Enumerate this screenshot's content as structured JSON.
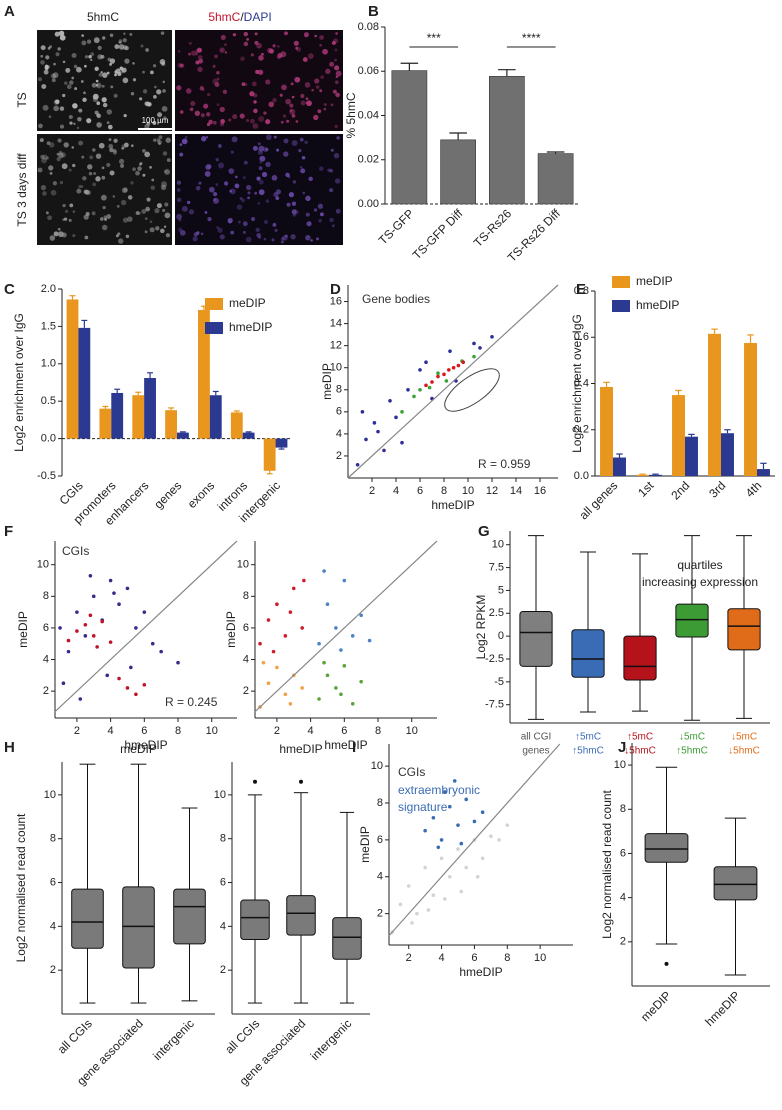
{
  "image_panel": {
    "panel": "A",
    "columns": [
      "5hmC",
      [
        "5hmC",
        "/",
        "DAPI"
      ]
    ],
    "rows": [
      "TS",
      "TS 3 days diff"
    ],
    "scale_bar": "100 µm"
  },
  "chart_data": [
    {
      "panel": "B",
      "type": "bar",
      "ylabel": "% 5hmC",
      "categories": [
        "TS-GFP",
        "TS-GFP Diff",
        "TS-Rs26",
        "TS-Rs26 Diff"
      ],
      "values": [
        0.0603,
        0.029,
        0.0577,
        0.0228
      ],
      "errors": [
        0.0033,
        0.0031,
        0.003,
        0.0007
      ],
      "color": "#707070",
      "ylim": [
        0,
        0.08
      ],
      "yticks": [
        {
          "value": 0,
          "label": "0.00"
        },
        {
          "value": 0.02,
          "label": "0.02"
        },
        {
          "value": 0.04,
          "label": "0.04"
        },
        {
          "value": 0.06,
          "label": "0.06"
        },
        {
          "value": 0.08,
          "label": "0.08"
        }
      ],
      "significance": [
        "***",
        "****"
      ],
      "zero_line": true
    },
    {
      "panel": "C",
      "type": "bar",
      "ylabel": "Log2 enrichment over IgG",
      "categories": [
        "CGIs",
        "promoters",
        "enhancers",
        "genes",
        "exons",
        "introns",
        "intergenic"
      ],
      "series": [
        {
          "name": "meDIP",
          "color": "#e8961e",
          "values": [
            1.86,
            0.4,
            0.58,
            0.38,
            1.72,
            0.35,
            -0.43
          ],
          "errors": [
            0.05,
            0.03,
            0.04,
            0.03,
            0.05,
            0.02,
            0.04
          ]
        },
        {
          "name": "hmeDIP",
          "color": "#2b3990",
          "values": [
            1.48,
            0.61,
            0.81,
            0.08,
            0.58,
            0.08,
            -0.12
          ],
          "errors": [
            0.1,
            0.05,
            0.07,
            0.01,
            0.05,
            0.01,
            0.02
          ]
        }
      ],
      "ylim": [
        -0.5,
        2
      ],
      "yticks": [
        -0.5,
        {
          "value": 0,
          "label": "0.0"
        },
        0.5,
        {
          "value": 1,
          "label": "1.0"
        },
        1.5,
        {
          "value": 2,
          "label": "2.0"
        }
      ],
      "legend": "upper right",
      "zero_line": true
    },
    {
      "panel": "D",
      "type": "scatter",
      "xlabel": "hmeDIP",
      "ylabel": "meDIP",
      "annotations": [
        "Gene bodies",
        "R = 0.959"
      ],
      "xlim": [
        0,
        17.5
      ],
      "ylim": [
        0,
        17.5
      ],
      "xticks": [
        2,
        4,
        6,
        8,
        10,
        12,
        14,
        16
      ],
      "yticks": [
        2,
        4,
        6,
        8,
        10,
        12,
        14,
        16
      ],
      "diagonal": true,
      "series": [
        {
          "color": "#2e2e9a",
          "x": [
            0.8,
            1.5,
            2.2,
            3,
            3.5,
            4,
            5,
            6,
            7,
            8.5,
            9,
            10.5,
            12,
            1.2,
            2.5,
            4.5,
            6.5,
            11
          ],
          "values": [
            1.2,
            3.5,
            5,
            2.5,
            7,
            5.5,
            8,
            9.8,
            7.2,
            11.5,
            8.8,
            12.2,
            12.8,
            6,
            4.2,
            3.2,
            10.5,
            11.8
          ]
        },
        {
          "color": "#3aa335",
          "x": [
            4.5,
            5.5,
            6,
            6.8,
            7.5,
            8.2,
            9.5,
            10.5
          ],
          "values": [
            6,
            7.4,
            8,
            8.2,
            9.5,
            8.8,
            10.6,
            11
          ]
        },
        {
          "color": "#d7191c",
          "x": [
            6.5,
            7,
            7.5,
            8,
            8.4,
            8.8,
            9.2,
            9.6
          ],
          "values": [
            8.4,
            8.7,
            9.2,
            9.4,
            9.8,
            10,
            10.2,
            10.5
          ]
        }
      ]
    },
    {
      "panel": "E",
      "type": "bar",
      "ylabel": "Log2 enrichment over IgG",
      "xlabel": [
        "quartiles",
        "increasing expression"
      ],
      "categories": [
        "all genes",
        "1st",
        "2nd",
        "3rd",
        "4th"
      ],
      "series": [
        {
          "name": "meDIP",
          "color": "#e8961e",
          "values": [
            0.385,
            0.005,
            0.35,
            0.615,
            0.575
          ],
          "errors": [
            0.02,
            0.003,
            0.02,
            0.02,
            0.035
          ]
        },
        {
          "name": "hmeDIP",
          "color": "#2b3990",
          "values": [
            0.08,
            0.005,
            0.17,
            0.185,
            0.03
          ],
          "errors": [
            0.015,
            0.003,
            0.01,
            0.015,
            0.025
          ]
        }
      ],
      "ylim": [
        0,
        0.8
      ],
      "yticks": [
        {
          "value": 0,
          "label": "0.0"
        },
        0.2,
        0.4,
        0.6,
        0.8
      ],
      "legend": "upper left"
    },
    {
      "panel": "F",
      "type": "scatter",
      "xlabel": "hmeDIP",
      "ylabel": "meDIP",
      "annotations": [
        "CGIs",
        "R = 0.245"
      ],
      "xlim": [
        0.7,
        11.5
      ],
      "ylim": [
        0.3,
        11.5
      ],
      "xticks": [
        2,
        4,
        6,
        8,
        10
      ],
      "yticks": [
        2,
        4,
        6,
        8,
        10
      ],
      "diagonal": true,
      "series": [
        {
          "color": "#3b2a8c",
          "x": [
            1,
            1.5,
            2,
            2.5,
            3,
            3.5,
            4,
            4.5,
            5,
            5.5,
            6,
            6.5,
            7,
            1.2,
            2.2,
            3.8,
            5.2,
            8,
            4.2,
            2.8
          ],
          "values": [
            6,
            4.5,
            7,
            5.5,
            8,
            6.5,
            9,
            7.5,
            8.5,
            6,
            7,
            5,
            4.5,
            2.5,
            1.5,
            3,
            3.5,
            3.8,
            8.2,
            9.3
          ]
        },
        {
          "color": "#c0142b",
          "x": [
            1.5,
            2,
            2.5,
            3,
            3.5,
            4,
            4.5,
            5,
            5.5,
            6,
            2.8,
            3.2
          ],
          "values": [
            5.2,
            5.8,
            6.2,
            5.5,
            6.4,
            5.1,
            2.8,
            2.2,
            1.8,
            2.4,
            6.8,
            4.8
          ]
        }
      ]
    },
    {
      "type": "scatter",
      "xlabel": "hmeDIP",
      "ylabel": "meDIP",
      "xlim": [
        0.7,
        11.5
      ],
      "ylim": [
        0.3,
        11.5
      ],
      "xticks": [
        2,
        4,
        6,
        8,
        10
      ],
      "yticks": [
        2,
        4,
        6,
        8,
        10
      ],
      "diagonal": true,
      "series": [
        {
          "color": "#d01c2a",
          "x": [
            1,
            1.5,
            2,
            2.5,
            3,
            3.5,
            1.8,
            2.8,
            3.6
          ],
          "values": [
            5,
            6.5,
            7.5,
            5.5,
            8.5,
            6,
            4.5,
            7,
            9
          ]
        },
        {
          "color": "#4f84c4",
          "x": [
            4.5,
            5,
            5.5,
            6,
            6.5,
            7,
            4.8,
            5.8,
            7.5
          ],
          "values": [
            5,
            7.5,
            6,
            9,
            5.5,
            6.8,
            9.6,
            4.6,
            5.2
          ]
        },
        {
          "color": "#f3a04a",
          "x": [
            1,
            1.5,
            2,
            2.5,
            3,
            3.5,
            1.2,
            2.8
          ],
          "values": [
            1,
            2.5,
            3.5,
            1.8,
            3,
            2.2,
            3.8,
            1.2
          ]
        },
        {
          "color": "#5aa43a",
          "x": [
            4.5,
            5,
            5.5,
            6,
            6.5,
            4.8,
            5.8,
            7
          ],
          "values": [
            1.5,
            3,
            2.2,
            3.6,
            1.2,
            3.8,
            1.8,
            2.6
          ]
        }
      ]
    },
    {
      "panel": "G",
      "type": "box",
      "ylabel": "Log2 RPKM",
      "categories": [
        [
          "all CGI",
          "genes"
        ],
        [
          "↑5mC",
          "↑5hmC"
        ],
        [
          "↑5mC",
          "↓5hmC"
        ],
        [
          "↓5mC",
          "↑5hmC"
        ],
        [
          "↓5mC",
          "↓5hmC"
        ]
      ],
      "colors": [
        "#7f7f7f",
        "#3a6cb5",
        "#b5121b",
        "#3d9b35",
        "#e06c1a"
      ],
      "boxes": [
        {
          "low": -9.1,
          "q1": -3.3,
          "median": 0.4,
          "q3": 2.7,
          "high": 11
        },
        {
          "low": -8.3,
          "q1": -4.5,
          "median": -2.5,
          "q3": 0.7,
          "high": 9.2
        },
        {
          "low": -8.2,
          "q1": -4.8,
          "median": -3.3,
          "q3": 0,
          "high": 9
        },
        {
          "low": -9.2,
          "q1": -0.1,
          "median": 1.8,
          "q3": 3.5,
          "high": 11
        },
        {
          "low": -9,
          "q1": -1.5,
          "median": 1.1,
          "q3": 3,
          "high": 11
        }
      ],
      "ylim": [
        -9.5,
        11.5
      ],
      "yticks": [
        -7.5,
        -5,
        -2.5,
        0,
        2.5,
        5,
        7.5,
        10
      ]
    },
    {
      "panel": "H",
      "type": "box",
      "title": "meDIP",
      "ylabel": "Log2 normalised read count",
      "categories": [
        "all CGIs",
        "gene associated",
        "intergenic"
      ],
      "color": "#7a7a7a",
      "boxes": [
        {
          "low": 0.5,
          "q1": 3,
          "median": 4.2,
          "q3": 5.7,
          "high": 11.4
        },
        {
          "low": 0.5,
          "q1": 2.1,
          "median": 4,
          "q3": 5.8,
          "high": 11.4
        },
        {
          "low": 0.6,
          "q1": 3.2,
          "median": 4.9,
          "q3": 5.7,
          "high": 9.4
        }
      ],
      "ylim": [
        0,
        11.5
      ],
      "yticks": [
        2,
        4,
        6,
        8,
        10
      ]
    },
    {
      "type": "box",
      "title": "hmeDIP",
      "categories": [
        "all CGIs",
        "gene associated",
        "intergenic"
      ],
      "color": "#7a7a7a",
      "boxes": [
        {
          "low": 0.5,
          "q1": 3.4,
          "median": 4.4,
          "q3": 5.2,
          "high": 10,
          "outliers": [
            10.6
          ]
        },
        {
          "low": 0.5,
          "q1": 3.6,
          "median": 4.6,
          "q3": 5.4,
          "high": 10.1,
          "outliers": [
            10.6
          ]
        },
        {
          "low": 0.5,
          "q1": 2.5,
          "median": 3.5,
          "q3": 4.4,
          "high": 9.2
        }
      ],
      "ylim": [
        0,
        11.5
      ],
      "yticks": [
        2,
        4,
        6,
        8,
        10
      ]
    },
    {
      "panel": "I",
      "type": "scatter",
      "xlabel": "hmeDIP",
      "ylabel": "meDIP",
      "annotations": [
        "CGIs",
        "extraembryonic",
        "signature"
      ],
      "xlim": [
        0.8,
        12
      ],
      "ylim": [
        0.3,
        11.2
      ],
      "xticks": [
        2,
        4,
        6,
        8,
        10
      ],
      "yticks": [
        2,
        4,
        6,
        8,
        10
      ],
      "diagonal": true,
      "series": [
        {
          "color": "#d3d3d3",
          "x": [
            1,
            1.5,
            2,
            2.5,
            3,
            3.5,
            4,
            4.5,
            5,
            5.5,
            6,
            6.5,
            7,
            7.5,
            2.2,
            3.2,
            4.2,
            5.2,
            6.2,
            8
          ],
          "values": [
            1,
            2.5,
            3.5,
            2,
            4.5,
            3,
            5,
            4,
            5.5,
            4.5,
            6,
            5,
            6.2,
            6,
            1.5,
            2.2,
            2.8,
            3.2,
            4,
            6.8
          ]
        },
        {
          "color": "#3a6cb5",
          "x": [
            3,
            3.5,
            4,
            4.5,
            5,
            5.5,
            6,
            6.5,
            4.2,
            5.2,
            3.8,
            4.8
          ],
          "values": [
            6.5,
            7.2,
            6,
            7.8,
            6.8,
            8.2,
            7,
            7.5,
            8.6,
            5.8,
            5.6,
            9.2
          ]
        }
      ]
    },
    {
      "panel": "J",
      "type": "box",
      "ylabel": "Log2 normalised read count",
      "categories": [
        "meDIP",
        "hmeDIP"
      ],
      "color": "#7a7a7a",
      "boxes": [
        {
          "low": 1.9,
          "q1": 5.6,
          "median": 6.2,
          "q3": 6.9,
          "high": 9.9,
          "outliers": [
            1
          ]
        },
        {
          "low": 0.5,
          "q1": 3.9,
          "median": 4.6,
          "q3": 5.4,
          "high": 7.6
        }
      ],
      "ylim": [
        0,
        11
      ],
      "yticks": [
        2,
        4,
        6,
        8,
        10
      ]
    }
  ]
}
